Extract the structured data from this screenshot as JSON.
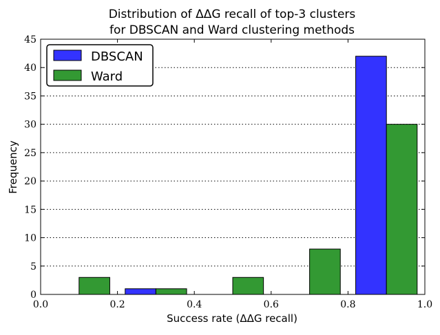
{
  "chart_data": {
    "type": "bar",
    "title_lines": [
      "Distribution of ΔΔG recall of top-3 clusters",
      "for DBSCAN and Ward clustering methods"
    ],
    "xlabel": "Success rate (ΔΔG recall)",
    "ylabel": "Frequency",
    "xlim": [
      0.0,
      1.0
    ],
    "ylim": [
      0,
      45
    ],
    "x_ticks": [
      "0.0",
      "0.2",
      "0.4",
      "0.6",
      "0.8",
      "1.0"
    ],
    "y_ticks": [
      "0",
      "5",
      "10",
      "15",
      "20",
      "25",
      "30",
      "35",
      "40",
      "45"
    ],
    "grid": "horizontal dotted",
    "legend_position": "top-left",
    "series": [
      {
        "name": "DBSCAN",
        "color": "#3333ff",
        "bins": [
          {
            "x0": 0.1,
            "x1": 0.18,
            "value": 0
          },
          {
            "x0": 0.22,
            "x1": 0.3,
            "value": 1
          },
          {
            "x0": 0.3,
            "x1": 0.38,
            "value": 0
          },
          {
            "x0": 0.5,
            "x1": 0.58,
            "value": 0
          },
          {
            "x0": 0.7,
            "x1": 0.78,
            "value": 0
          },
          {
            "x0": 0.82,
            "x1": 0.9,
            "value": 42
          }
        ]
      },
      {
        "name": "Ward",
        "color": "#339933",
        "bins": [
          {
            "x0": 0.1,
            "x1": 0.18,
            "value": 3
          },
          {
            "x0": 0.3,
            "x1": 0.38,
            "value": 1
          },
          {
            "x0": 0.5,
            "x1": 0.58,
            "value": 3
          },
          {
            "x0": 0.7,
            "x1": 0.78,
            "value": 8
          },
          {
            "x0": 0.9,
            "x1": 0.98,
            "value": 30
          }
        ]
      }
    ]
  }
}
